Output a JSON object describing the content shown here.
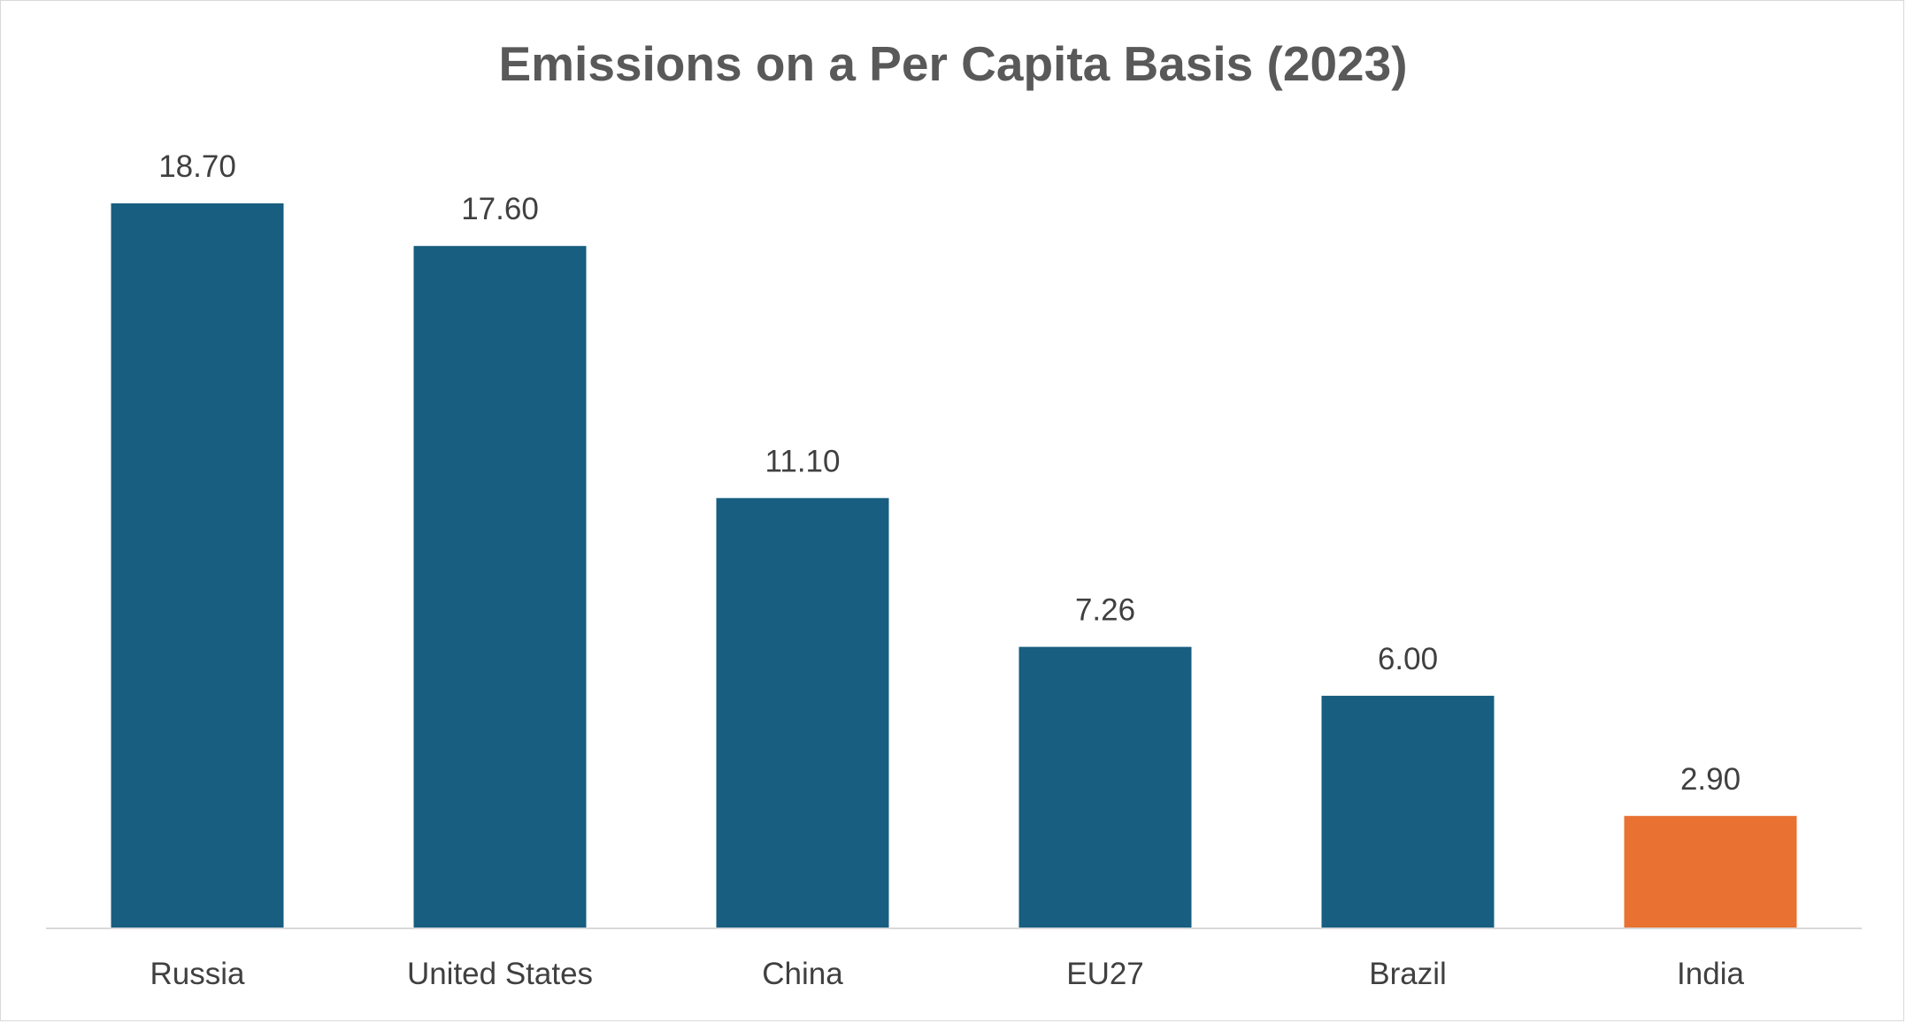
{
  "chart_data": {
    "type": "bar",
    "title": "Emissions on a Per Capita Basis (2023)",
    "categories": [
      "Russia",
      "United States",
      "China",
      "EU27",
      "Brazil",
      "India"
    ],
    "values": [
      18.7,
      17.6,
      11.1,
      7.26,
      6.0,
      2.9
    ],
    "value_labels": [
      "18.70",
      "17.60",
      "11.10",
      "7.26",
      "6.00",
      "2.90"
    ],
    "colors": [
      "#175e80",
      "#175e80",
      "#175e80",
      "#175e80",
      "#175e80",
      "#e97132"
    ],
    "xlabel": "",
    "ylabel": "",
    "ylim": [
      0,
      20
    ],
    "grid": false,
    "legend": "none"
  }
}
